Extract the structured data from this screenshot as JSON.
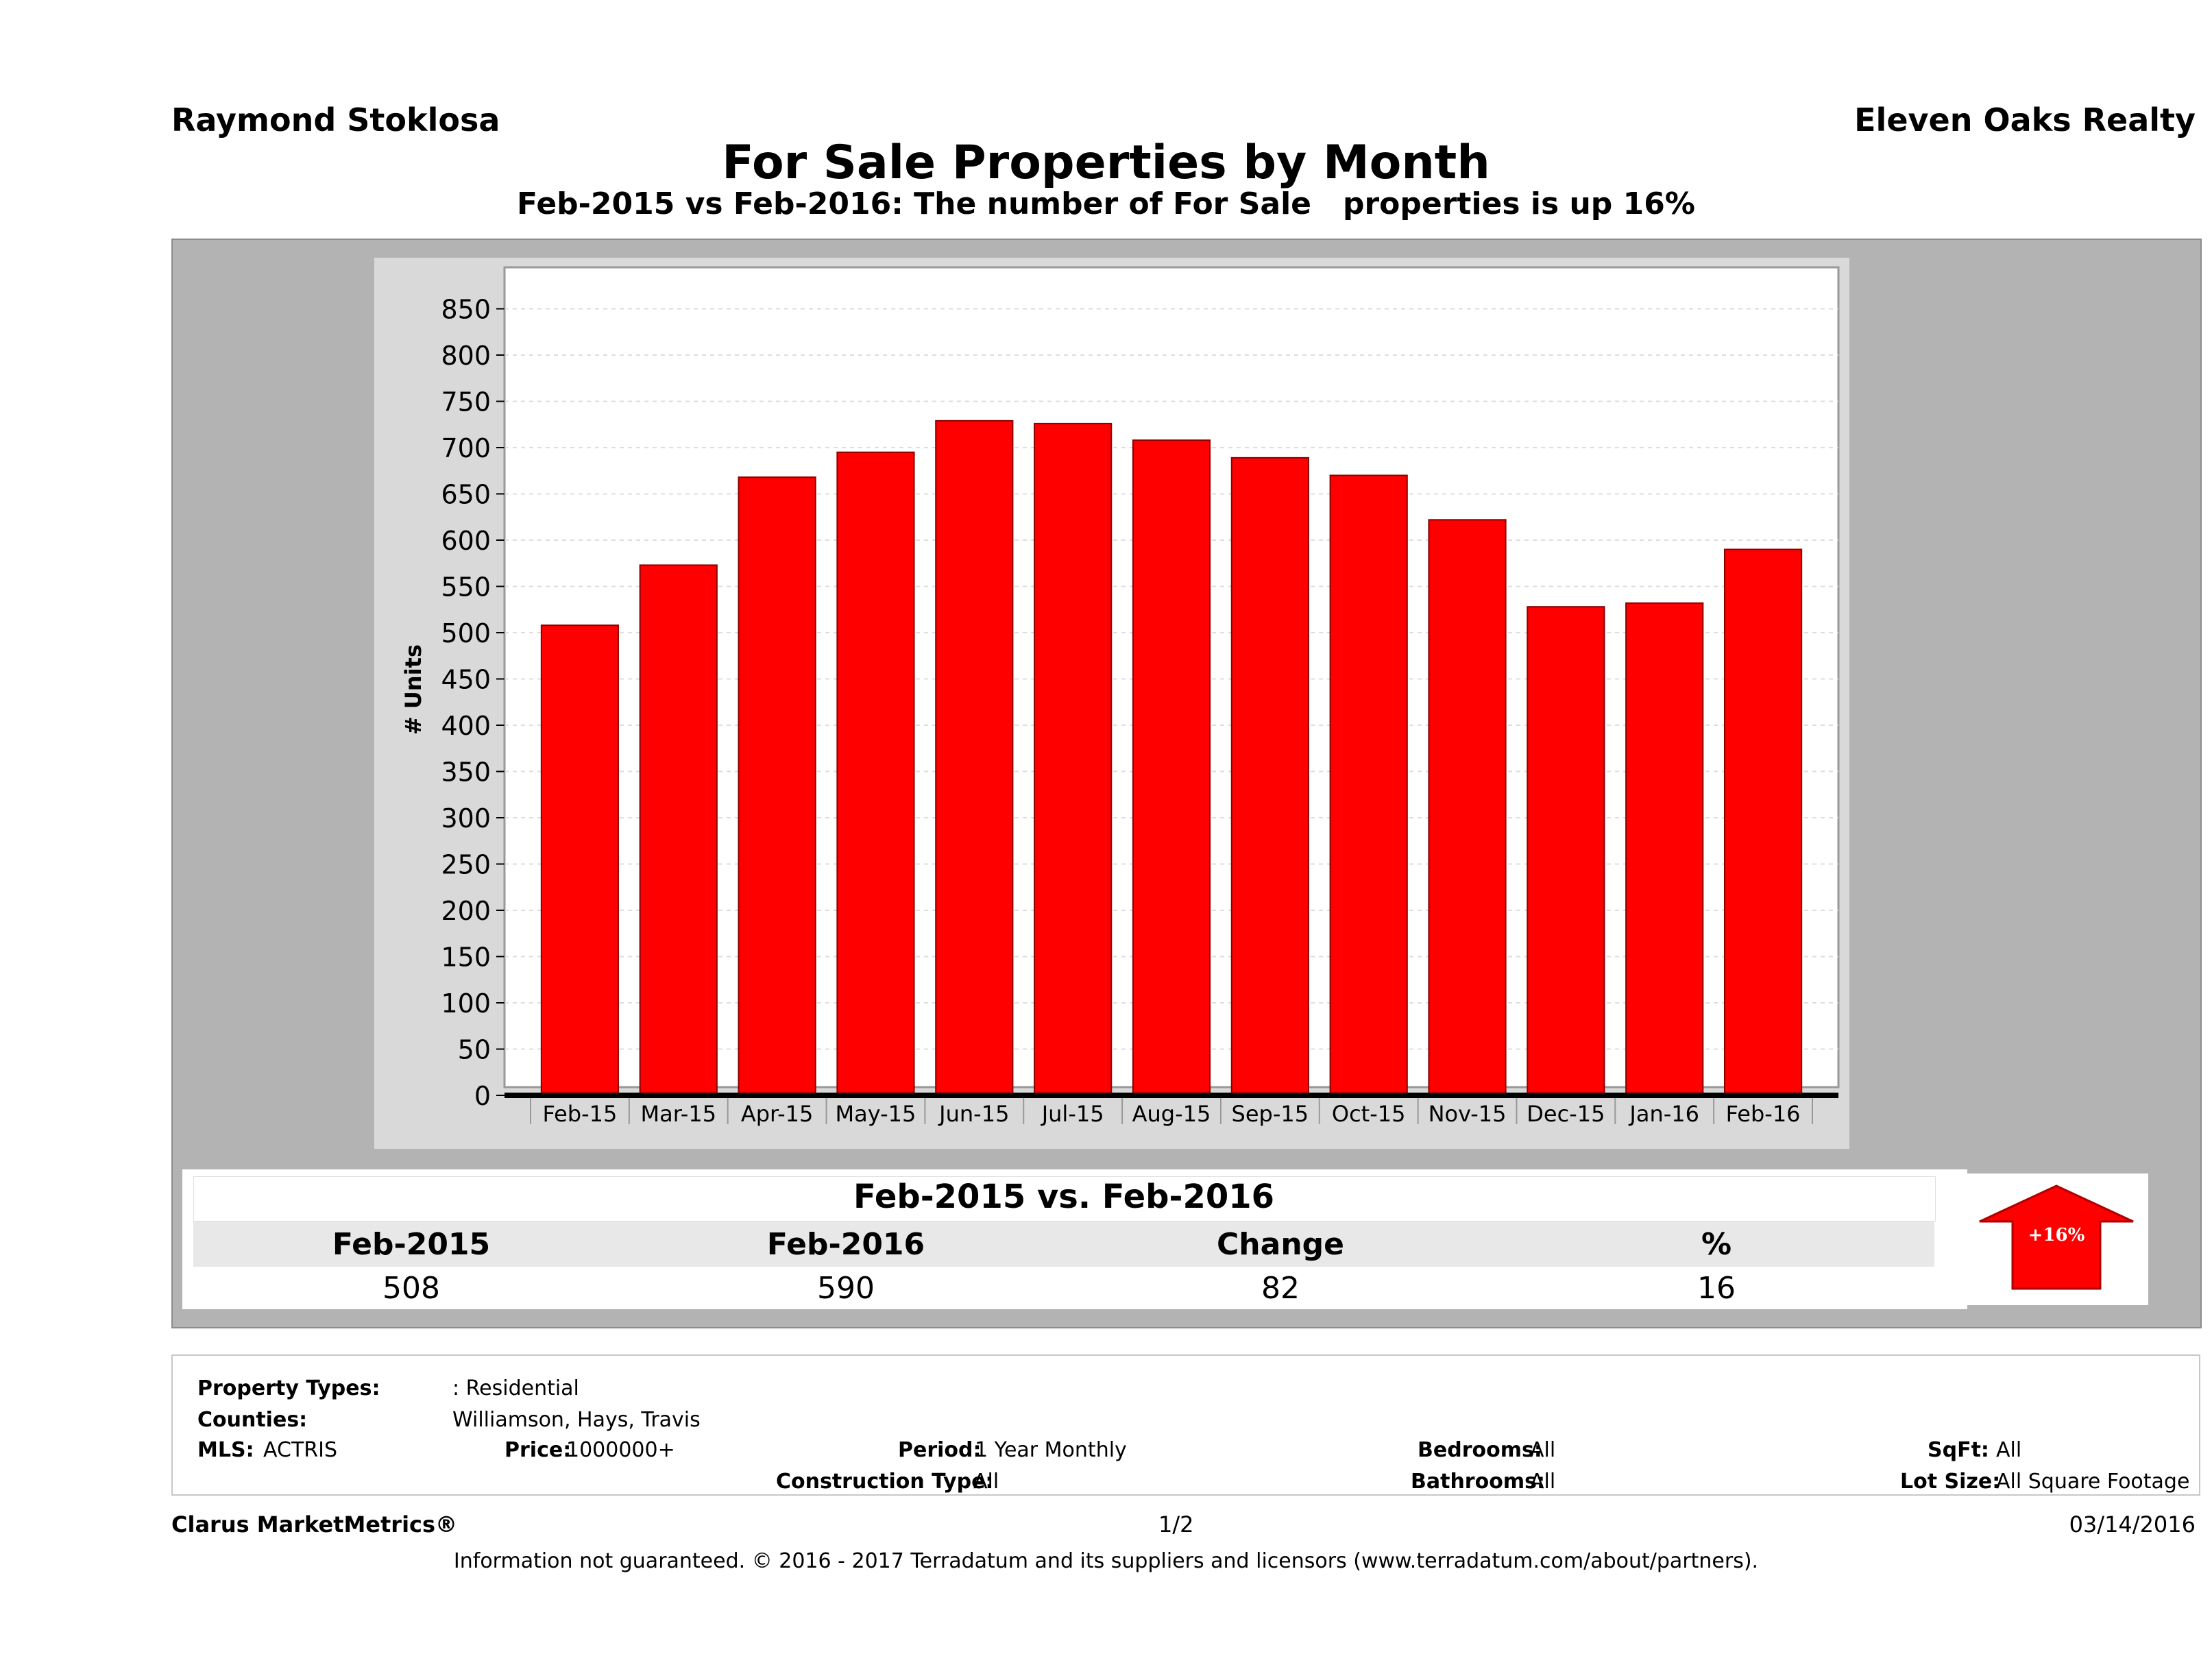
{
  "header": {
    "agent": "Raymond Stoklosa",
    "brokerage": "Eleven Oaks Realty",
    "title": "For Sale Properties by Month",
    "subtitle": "Feb-2015 vs Feb-2016: The number of For Sale   properties is up 16%"
  },
  "chart_data": {
    "type": "bar",
    "ylabel": "# Units",
    "ylim": [
      0,
      880
    ],
    "yticks": [
      0,
      50,
      100,
      150,
      200,
      250,
      300,
      350,
      400,
      450,
      500,
      550,
      600,
      650,
      700,
      750,
      800,
      850
    ],
    "grid": true,
    "bar_color": "#ff0000",
    "categories": [
      "Feb-15",
      "Mar-15",
      "Apr-15",
      "May-15",
      "Jun-15",
      "Jul-15",
      "Aug-15",
      "Sep-15",
      "Oct-15",
      "Nov-15",
      "Dec-15",
      "Jan-16",
      "Feb-16"
    ],
    "values": [
      508,
      573,
      668,
      695,
      729,
      726,
      708,
      689,
      670,
      622,
      528,
      532,
      590
    ]
  },
  "summary": {
    "title": "Feb-2015 vs. Feb-2016",
    "headers": [
      "Feb-2015",
      "Feb-2016",
      "Change",
      "%"
    ],
    "values": [
      "508",
      "590",
      "82",
      "16"
    ],
    "badge": "+16%",
    "badge_color": "#ff0000"
  },
  "filters": {
    "property_types_label": "Property Types:",
    "property_types_value": ": Residential",
    "counties_label": "Counties:",
    "counties_value": "Williamson, Hays, Travis",
    "mls_label": "MLS:",
    "mls_value": "ACTRIS",
    "price_label": "Price:",
    "price_value": "1000000+",
    "period_label": "Period:",
    "period_value": "1 Year Monthly",
    "construction_label": "Construction Type:",
    "construction_value": "All",
    "bedrooms_label": "Bedrooms:",
    "bedrooms_value": "All",
    "bathrooms_label": "Bathrooms:",
    "bathrooms_value": "All",
    "sqft_label": "SqFt:",
    "sqft_value": "All",
    "lot_label": "Lot Size:",
    "lot_value": "All Square Footage"
  },
  "footer": {
    "brand": "Clarus MarketMetrics®",
    "page": "1/2",
    "date": "03/14/2016",
    "disclaimer": "Information not guaranteed. © 2016 - 2017 Terradatum and its suppliers and licensors (www.terradatum.com/about/partners)."
  }
}
